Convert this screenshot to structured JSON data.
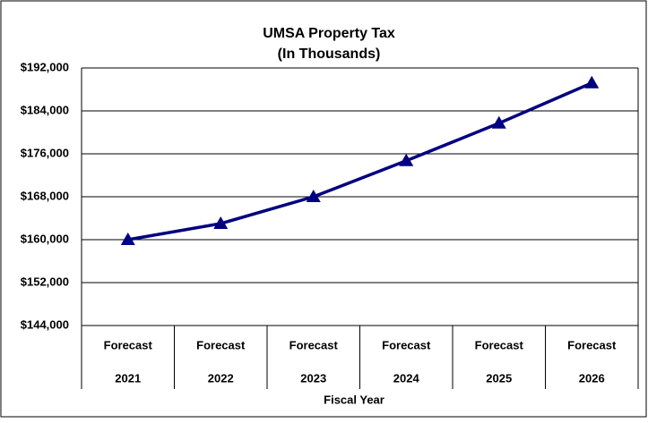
{
  "chart_data": {
    "type": "line",
    "title": [
      "UMSA Property Tax",
      "(In Thousands)"
    ],
    "x_label": "Fiscal Year",
    "categories": [
      [
        "Forecast",
        "2021"
      ],
      [
        "Forecast",
        "2022"
      ],
      [
        "Forecast",
        "2023"
      ],
      [
        "Forecast",
        "2024"
      ],
      [
        "Forecast",
        "2025"
      ],
      [
        "Forecast",
        "2026"
      ]
    ],
    "series": [
      {
        "name": "UMSA Property Tax",
        "color": "#000080",
        "values": [
          160000,
          163000,
          168000,
          174700,
          181700,
          189200
        ]
      }
    ],
    "ylim": [
      144000,
      192000
    ],
    "yticks": [
      {
        "value": 144000,
        "label": "$144,000"
      },
      {
        "value": 152000,
        "label": "$152,000"
      },
      {
        "value": 160000,
        "label": "$160,000"
      },
      {
        "value": 168000,
        "label": "$168,000"
      },
      {
        "value": 176000,
        "label": "$176,000"
      },
      {
        "value": 184000,
        "label": "$184,000"
      },
      {
        "value": 192000,
        "label": "$192,000"
      }
    ],
    "grid": true
  }
}
